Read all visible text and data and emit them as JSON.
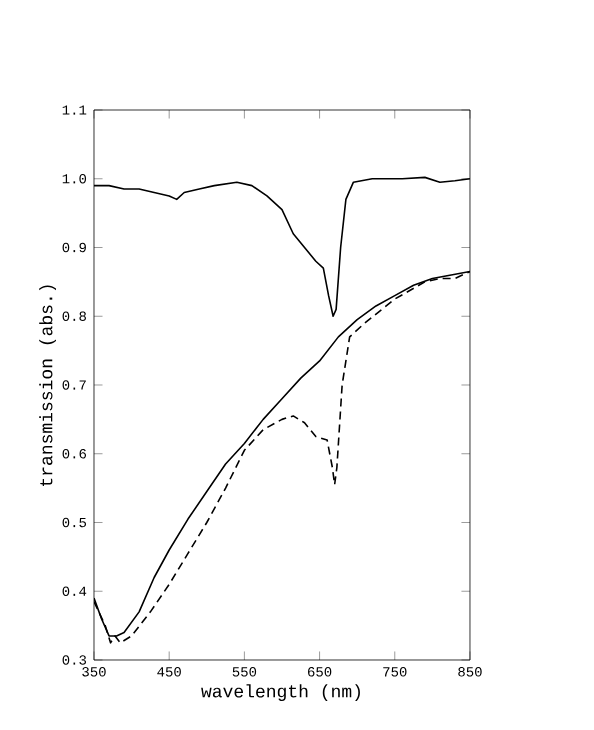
{
  "chart_data": {
    "type": "line",
    "xlabel": "wavelength  (nm)",
    "ylabel": "transmission  (abs.)",
    "xlim": [
      350,
      850
    ],
    "ylim": [
      0.3,
      1.1
    ],
    "xticks": [
      350,
      450,
      550,
      650,
      750,
      850
    ],
    "yticks": [
      0.3,
      0.4,
      0.5,
      0.6,
      0.7,
      0.8,
      0.9,
      {
        "value": 1.0,
        "label": "1.0"
      },
      1.1
    ],
    "grid": false,
    "series": [
      {
        "color": "#000000",
        "line_style": "solid",
        "x": [
          350,
          370,
          390,
          410,
          430,
          450,
          460,
          470,
          490,
          510,
          540,
          560,
          580,
          600,
          615,
          630,
          645,
          655,
          662,
          668,
          672,
          678,
          685,
          695,
          720,
          760,
          790,
          810,
          830,
          850
        ],
        "values": [
          0.99,
          0.99,
          0.985,
          0.985,
          0.98,
          0.975,
          0.97,
          0.98,
          0.985,
          0.99,
          0.995,
          0.99,
          0.975,
          0.955,
          0.92,
          0.9,
          0.88,
          0.87,
          0.83,
          0.8,
          0.81,
          0.9,
          0.97,
          0.995,
          1.0,
          1.0,
          1.002,
          0.995,
          0.997,
          1.0
        ]
      },
      {
        "color": "#000000",
        "line_style": "solid",
        "x": [
          350,
          360,
          370,
          380,
          390,
          410,
          430,
          450,
          475,
          500,
          525,
          550,
          575,
          600,
          625,
          650,
          675,
          700,
          725,
          750,
          775,
          800,
          825,
          850
        ],
        "values": [
          0.39,
          0.36,
          0.335,
          0.335,
          0.34,
          0.37,
          0.42,
          0.46,
          0.505,
          0.545,
          0.585,
          0.615,
          0.65,
          0.68,
          0.71,
          0.735,
          0.77,
          0.795,
          0.815,
          0.83,
          0.845,
          0.855,
          0.86,
          0.865
        ]
      },
      {
        "color": "#000000",
        "line_style": "dashed",
        "x": [
          350,
          365,
          372,
          378,
          385,
          400,
          425,
          450,
          475,
          500,
          525,
          550,
          575,
          600,
          615,
          630,
          645,
          660,
          667,
          670,
          673,
          680,
          690,
          710,
          750,
          790,
          810,
          830,
          850
        ],
        "values": [
          0.385,
          0.35,
          0.325,
          0.335,
          0.325,
          0.335,
          0.37,
          0.41,
          0.455,
          0.5,
          0.55,
          0.605,
          0.635,
          0.65,
          0.655,
          0.645,
          0.625,
          0.62,
          0.58,
          0.555,
          0.58,
          0.7,
          0.77,
          0.79,
          0.825,
          0.85,
          0.855,
          0.855,
          0.865
        ]
      }
    ]
  }
}
